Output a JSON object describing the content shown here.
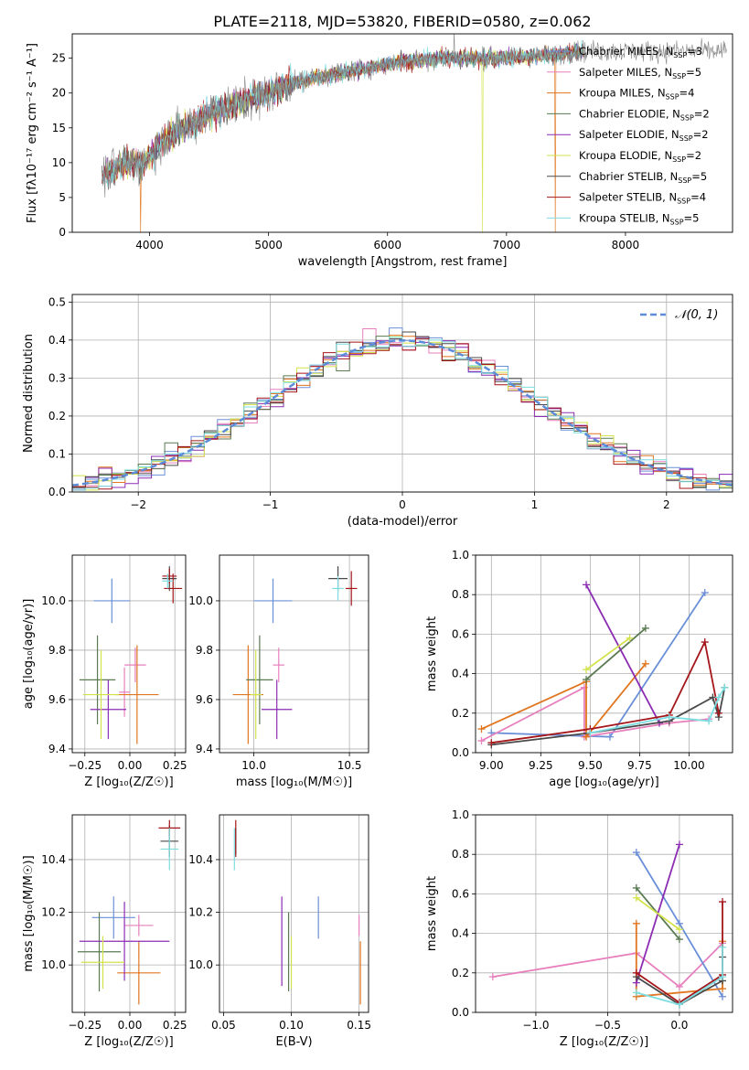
{
  "title": "PLATE=2118, MJD=53820, FIBERID=0580, z=0.062",
  "colors": {
    "Chabrier MILES": "#6a8fd8",
    "Salpeter MILES": "#e77fbd",
    "Kroupa MILES": "#e0761f",
    "Chabrier ELODIE": "#5a7a52",
    "Salpeter ELODIE": "#8b2cb3",
    "Kroupa ELODIE": "#d2e24a",
    "Chabrier STELIB": "#4a4a4a",
    "Salpeter STELIB": "#a4161a",
    "Kroupa STELIB": "#7ddde0"
  },
  "legend": [
    {
      "name": "Chabrier MILES",
      "n": "3"
    },
    {
      "name": "Salpeter MILES",
      "n": "5"
    },
    {
      "name": "Kroupa MILES",
      "n": "4"
    },
    {
      "name": "Chabrier ELODIE",
      "n": "2"
    },
    {
      "name": "Salpeter ELODIE",
      "n": "2"
    },
    {
      "name": "Kroupa ELODIE",
      "n": "2"
    },
    {
      "name": "Chabrier STELIB",
      "n": "5"
    },
    {
      "name": "Salpeter STELIB",
      "n": "4"
    },
    {
      "name": "Kroupa STELIB",
      "n": "5"
    }
  ],
  "chart_data": [
    {
      "id": "spectrum",
      "type": "line",
      "xlabel": "wavelength [Angstrom, rest frame]",
      "ylabel": "Flux [fλ10⁻¹⁷ erg cm⁻² s⁻¹ A⁻¹]",
      "xlim": [
        3350,
        8900
      ],
      "ylim": [
        0,
        28.5
      ],
      "xticks": [
        4000,
        5000,
        6000,
        7000,
        8000
      ],
      "yticks": [
        0,
        5,
        10,
        15,
        20,
        25
      ],
      "continuum": [
        [
          3600,
          8
        ],
        [
          3800,
          10
        ],
        [
          3950,
          10
        ],
        [
          4100,
          13
        ],
        [
          4300,
          15
        ],
        [
          4500,
          17
        ],
        [
          4800,
          19
        ],
        [
          5000,
          20
        ],
        [
          5200,
          21.5
        ],
        [
          5500,
          22.5
        ],
        [
          5800,
          23.5
        ],
        [
          6100,
          24.5
        ],
        [
          6500,
          25
        ],
        [
          7000,
          25
        ],
        [
          7400,
          25.5
        ],
        [
          7600,
          26
        ]
      ],
      "grid": false
    },
    {
      "id": "residuals",
      "type": "line",
      "xlabel": "(data-model)/error",
      "ylabel": "Normed distribution",
      "xlim": [
        -2.5,
        2.5
      ],
      "ylim": [
        0,
        0.52
      ],
      "xticks": [
        -2,
        -1,
        0,
        1,
        2
      ],
      "yticks": [
        0.0,
        0.1,
        0.2,
        0.3,
        0.4,
        0.5
      ],
      "legend_label": "𝒩(0, 1)",
      "legend_position": "top-right",
      "grid": true
    },
    {
      "id": "age_vs_Z",
      "type": "scatter",
      "xlabel": "Z [log₁₀(Z/Z☉)]",
      "ylabel": "age  [log₁₀(age/yr)]",
      "xlim": [
        -0.32,
        0.31
      ],
      "ylim": [
        9.385,
        10.185
      ],
      "xticks": [
        -0.25,
        0.0,
        0.25
      ],
      "xtick_labels": [
        "−0.25",
        "0.00",
        "0.25"
      ],
      "yticks": [
        9.4,
        9.6,
        9.8,
        10.0
      ],
      "ytick_labels": [
        "9.4",
        "9.6",
        "9.8",
        "10.0"
      ],
      "points": [
        {
          "s": "Chabrier MILES",
          "x": -0.1,
          "xerr": 0.1,
          "y": 10.0,
          "yerr": 0.09
        },
        {
          "s": "Salpeter MILES",
          "x": 0.03,
          "xerr": 0.06,
          "y": 9.74,
          "yerr": 0.07
        },
        {
          "s": "Salpeter MILES",
          "x": -0.03,
          "xerr": 0.03,
          "y": 9.63,
          "yerr": 0.1
        },
        {
          "s": "Kroupa MILES",
          "x": 0.04,
          "xerr": 0.12,
          "y": 9.62,
          "yerr": 0.2
        },
        {
          "s": "Chabrier ELODIE",
          "x": -0.18,
          "xerr": 0.1,
          "y": 9.68,
          "yerr": 0.18
        },
        {
          "s": "Salpeter ELODIE",
          "x": -0.12,
          "xerr": 0.1,
          "y": 9.56,
          "yerr": 0.12
        },
        {
          "s": "Kroupa ELODIE",
          "x": -0.16,
          "xerr": 0.1,
          "y": 9.62,
          "yerr": 0.18
        },
        {
          "s": "Chabrier STELIB",
          "x": 0.22,
          "xerr": 0.04,
          "y": 10.09,
          "yerr": 0.05
        },
        {
          "s": "Salpeter STELIB",
          "x": 0.24,
          "xerr": 0.05,
          "y": 10.05,
          "yerr": 0.06
        },
        {
          "s": "Salpeter STELIB",
          "x": 0.22,
          "xerr": 0.04,
          "y": 10.1,
          "yerr": 0.03
        },
        {
          "s": "Kroupa STELIB",
          "x": 0.21,
          "xerr": 0.03,
          "y": 10.08,
          "yerr": 0.03
        }
      ],
      "grid": true
    },
    {
      "id": "age_vs_mass",
      "type": "scatter",
      "xlabel": "mass [log₁₀(M/M☉)]",
      "ylabel": "",
      "xlim": [
        9.82,
        10.6
      ],
      "ylim": [
        9.385,
        10.185
      ],
      "xticks": [
        10.0,
        10.5
      ],
      "xtick_labels": [
        "10.0",
        "10.5"
      ],
      "yticks": [
        9.4,
        9.6,
        9.8,
        10.0
      ],
      "ytick_labels": [
        "9.4",
        "9.6",
        "9.8",
        "10.0"
      ],
      "points": [
        {
          "s": "Chabrier MILES",
          "x": 10.1,
          "xerr": 0.1,
          "y": 10.0,
          "yerr": 0.09
        },
        {
          "s": "Salpeter MILES",
          "x": 10.13,
          "xerr": 0.03,
          "y": 9.74,
          "yerr": 0.07
        },
        {
          "s": "Kroupa MILES",
          "x": 9.97,
          "xerr": 0.08,
          "y": 9.62,
          "yerr": 0.2
        },
        {
          "s": "Chabrier ELODIE",
          "x": 10.03,
          "xerr": 0.07,
          "y": 9.68,
          "yerr": 0.18
        },
        {
          "s": "Salpeter ELODIE",
          "x": 10.12,
          "xerr": 0.08,
          "y": 9.56,
          "yerr": 0.12
        },
        {
          "s": "Kroupa ELODIE",
          "x": 10.01,
          "xerr": 0.03,
          "y": 9.62,
          "yerr": 0.18
        },
        {
          "s": "Chabrier STELIB",
          "x": 10.44,
          "xerr": 0.05,
          "y": 10.09,
          "yerr": 0.05
        },
        {
          "s": "Salpeter STELIB",
          "x": 10.51,
          "xerr": 0.03,
          "y": 10.05,
          "yerr": 0.07
        },
        {
          "s": "Kroupa STELIB",
          "x": 10.44,
          "xerr": 0.03,
          "y": 10.05,
          "yerr": 0.05
        }
      ],
      "grid": true
    },
    {
      "id": "weight_vs_age",
      "type": "line",
      "xlabel": "age  [log₁₀(age/yr)]",
      "ylabel": "mass weight",
      "xlim": [
        8.92,
        10.22
      ],
      "ylim": [
        0,
        1
      ],
      "xticks": [
        9.0,
        9.25,
        9.5,
        9.75,
        10.0
      ],
      "xtick_labels": [
        "9.00",
        "9.25",
        "9.50",
        "9.75",
        "10.00"
      ],
      "yticks": [
        0.0,
        0.2,
        0.4,
        0.6,
        0.8,
        1.0
      ],
      "ytick_labels": [
        "0.0",
        "0.2",
        "0.4",
        "0.6",
        "0.8",
        "1.0"
      ],
      "series": [
        {
          "s": "Chabrier MILES",
          "x": [
            9.0,
            9.6,
            10.08
          ],
          "y": [
            0.1,
            0.08,
            0.81
          ]
        },
        {
          "s": "Salpeter MILES",
          "x": [
            8.95,
            9.47,
            9.47,
            9.9,
            10.1
          ],
          "y": [
            0.06,
            0.33,
            0.08,
            0.15,
            0.17
          ]
        },
        {
          "s": "Kroupa MILES",
          "x": [
            8.95,
            9.48,
            9.48,
            9.78
          ],
          "y": [
            0.12,
            0.36,
            0.08,
            0.45
          ]
        },
        {
          "s": "Chabrier ELODIE",
          "x": [
            9.48,
            9.78
          ],
          "y": [
            0.37,
            0.63
          ]
        },
        {
          "s": "Salpeter ELODIE",
          "x": [
            9.48,
            9.85
          ],
          "y": [
            0.85,
            0.15
          ]
        },
        {
          "s": "Kroupa ELODIE",
          "x": [
            9.48,
            9.7
          ],
          "y": [
            0.42,
            0.58
          ]
        },
        {
          "s": "Chabrier STELIB",
          "x": [
            9.0,
            9.5,
            9.9,
            10.12,
            10.15,
            10.18
          ],
          "y": [
            0.04,
            0.1,
            0.16,
            0.28,
            0.18,
            0.33
          ]
        },
        {
          "s": "Salpeter STELIB",
          "x": [
            9.0,
            9.5,
            9.9,
            10.08,
            10.15
          ],
          "y": [
            0.05,
            0.12,
            0.19,
            0.56,
            0.2
          ]
        },
        {
          "s": "Kroupa STELIB",
          "x": [
            9.5,
            9.9,
            10.1,
            10.15,
            10.18
          ],
          "y": [
            0.1,
            0.18,
            0.16,
            0.28,
            0.33
          ]
        }
      ],
      "grid": true
    },
    {
      "id": "mass_vs_Z",
      "type": "scatter",
      "xlabel": "Z [log₁₀(Z/Z☉)]",
      "ylabel": "mass [log₁₀(M/M☉)]",
      "xlim": [
        -0.32,
        0.31
      ],
      "ylim": [
        9.82,
        10.57
      ],
      "xticks": [
        -0.25,
        0.0,
        0.25
      ],
      "xtick_labels": [
        "−0.25",
        "0.00",
        "0.25"
      ],
      "yticks": [
        10.0,
        10.2,
        10.4
      ],
      "ytick_labels": [
        "10.0",
        "10.2",
        "10.4"
      ],
      "points": [
        {
          "s": "Chabrier MILES",
          "x": -0.09,
          "xerr": 0.12,
          "y": 10.18,
          "yerr": 0.08
        },
        {
          "s": "Salpeter MILES",
          "x": 0.05,
          "xerr": 0.08,
          "y": 10.15,
          "yerr": 0.04
        },
        {
          "s": "Kroupa MILES",
          "x": 0.05,
          "xerr": 0.12,
          "y": 9.97,
          "yerr": 0.12
        },
        {
          "s": "Chabrier ELODIE",
          "x": -0.17,
          "xerr": 0.12,
          "y": 10.05,
          "yerr": 0.15
        },
        {
          "s": "Salpeter ELODIE",
          "x": -0.03,
          "xerr": 0.25,
          "y": 10.09,
          "yerr": 0.15
        },
        {
          "s": "Kroupa ELODIE",
          "x": -0.15,
          "xerr": 0.12,
          "y": 10.01,
          "yerr": 0.1
        },
        {
          "s": "Chabrier STELIB",
          "x": 0.22,
          "xerr": 0.05,
          "y": 10.47,
          "yerr": 0.06
        },
        {
          "s": "Salpeter STELIB",
          "x": 0.22,
          "xerr": 0.06,
          "y": 10.52,
          "yerr": 0.03
        },
        {
          "s": "Kroupa STELIB",
          "x": 0.22,
          "xerr": 0.05,
          "y": 10.44,
          "yerr": 0.08
        }
      ],
      "grid": true
    },
    {
      "id": "mass_vs_ebv",
      "type": "scatter",
      "xlabel": "E(B-V)",
      "ylabel": "",
      "xlim": [
        0.047,
        0.157
      ],
      "ylim": [
        9.82,
        10.57
      ],
      "xticks": [
        0.05,
        0.1,
        0.15
      ],
      "xtick_labels": [
        "0.05",
        "0.10",
        "0.15"
      ],
      "yticks": [
        10.0,
        10.2,
        10.4
      ],
      "ytick_labels": [
        "10.0",
        "10.2",
        "10.4"
      ],
      "points": [
        {
          "s": "Chabrier MILES",
          "x": 0.12,
          "xerr": 0,
          "y": 10.18,
          "yerr": 0.08
        },
        {
          "s": "Salpeter MILES",
          "x": 0.15,
          "xerr": 0,
          "y": 10.15,
          "yerr": 0.04
        },
        {
          "s": "Kroupa MILES",
          "x": 0.151,
          "xerr": 0,
          "y": 9.97,
          "yerr": 0.12
        },
        {
          "s": "Chabrier ELODIE",
          "x": 0.098,
          "xerr": 0,
          "y": 10.05,
          "yerr": 0.15
        },
        {
          "s": "Salpeter ELODIE",
          "x": 0.093,
          "xerr": 0,
          "y": 10.09,
          "yerr": 0.17
        },
        {
          "s": "Kroupa ELODIE",
          "x": 0.1,
          "xerr": 0,
          "y": 10.01,
          "yerr": 0.1
        },
        {
          "s": "Chabrier STELIB",
          "x": 0.059,
          "xerr": 0,
          "y": 10.47,
          "yerr": 0.05
        },
        {
          "s": "Salpeter STELIB",
          "x": 0.059,
          "xerr": 0,
          "y": 10.48,
          "yerr": 0.07
        },
        {
          "s": "Kroupa STELIB",
          "x": 0.058,
          "xerr": 0,
          "y": 10.44,
          "yerr": 0.08
        }
      ],
      "grid": true
    },
    {
      "id": "weight_vs_Z",
      "type": "line",
      "xlabel": "Z [log₁₀(Z/Z☉)]",
      "ylabel": "mass weight",
      "xlim": [
        -1.42,
        0.37
      ],
      "ylim": [
        0,
        1
      ],
      "xticks": [
        -1.0,
        -0.5,
        0.0
      ],
      "xtick_labels": [
        "−1.0",
        "−0.5",
        "0.0"
      ],
      "yticks": [
        0.0,
        0.2,
        0.4,
        0.6,
        0.8,
        1.0
      ],
      "ytick_labels": [
        "0.0",
        "0.2",
        "0.4",
        "0.6",
        "0.8",
        "1.0"
      ],
      "series": [
        {
          "s": "Salpeter MILES",
          "x": [
            -1.3,
            -0.3,
            0.0,
            0.3
          ],
          "y": [
            0.18,
            0.3,
            0.13,
            0.35
          ]
        },
        {
          "s": "Chabrier MILES",
          "x": [
            -0.3,
            0.0,
            0.3
          ],
          "y": [
            0.81,
            0.45,
            0.08
          ]
        },
        {
          "s": "Kroupa MILES",
          "x": [
            -0.3,
            -0.3,
            0.3,
            0.3
          ],
          "y": [
            0.45,
            0.08,
            0.12,
            0.36
          ]
        },
        {
          "s": "Chabrier ELODIE",
          "x": [
            -0.3,
            0.0
          ],
          "y": [
            0.63,
            0.37
          ]
        },
        {
          "s": "Salpeter ELODIE",
          "x": [
            -0.3,
            0.0
          ],
          "y": [
            0.15,
            0.85
          ]
        },
        {
          "s": "Kroupa ELODIE",
          "x": [
            -0.3,
            0.0
          ],
          "y": [
            0.58,
            0.42
          ]
        },
        {
          "s": "Chabrier STELIB",
          "x": [
            -0.3,
            0.0,
            0.3,
            0.3
          ],
          "y": [
            0.18,
            0.04,
            0.16,
            0.28
          ]
        },
        {
          "s": "Salpeter STELIB",
          "x": [
            -0.3,
            0.0,
            0.3,
            0.3
          ],
          "y": [
            0.2,
            0.05,
            0.19,
            0.56
          ]
        },
        {
          "s": "Kroupa STELIB",
          "x": [
            -0.3,
            0.0,
            0.3,
            0.3
          ],
          "y": [
            0.1,
            0.04,
            0.18,
            0.33
          ]
        }
      ],
      "grid": true
    }
  ]
}
